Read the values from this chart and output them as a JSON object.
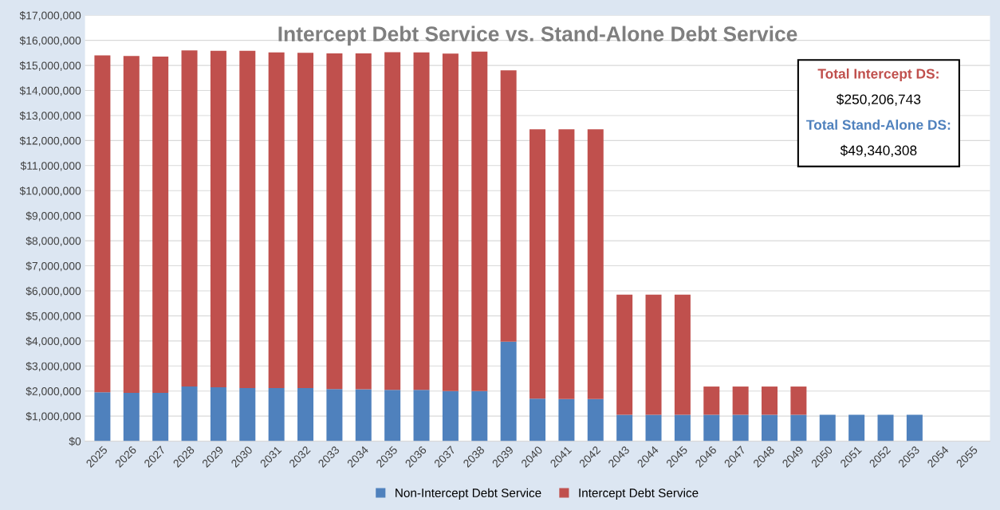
{
  "chart_data": {
    "type": "bar",
    "stacked": true,
    "title": "Intercept Debt Service vs. Stand-Alone Debt Service",
    "categories": [
      "2025",
      "2026",
      "2027",
      "2028",
      "2029",
      "2030",
      "2031",
      "2032",
      "2033",
      "2034",
      "2035",
      "2036",
      "2037",
      "2038",
      "2039",
      "2040",
      "2041",
      "2042",
      "2043",
      "2044",
      "2045",
      "2046",
      "2047",
      "2048",
      "2049",
      "2050",
      "2051",
      "2052",
      "2053",
      "2054",
      "2055"
    ],
    "series": [
      {
        "name": "Non-Intercept Debt Service",
        "color": "#4f81bd",
        "values": [
          1950000,
          1930000,
          1930000,
          2180000,
          2150000,
          2120000,
          2120000,
          2120000,
          2080000,
          2070000,
          2050000,
          2050000,
          2000000,
          2000000,
          3970000,
          1700000,
          1680000,
          1680000,
          1050000,
          1050000,
          1050000,
          1050000,
          1050000,
          1050000,
          1050000,
          1050000,
          1050000,
          1050000,
          1050000,
          0,
          0
        ]
      },
      {
        "name": "Intercept Debt Service",
        "color": "#c0504d",
        "values": [
          13450000,
          13450000,
          13420000,
          13420000,
          13430000,
          13460000,
          13400000,
          13380000,
          13400000,
          13410000,
          13480000,
          13470000,
          13470000,
          13550000,
          10830000,
          10750000,
          10770000,
          10770000,
          4800000,
          4800000,
          4800000,
          1130000,
          1130000,
          1130000,
          1130000,
          0,
          0,
          0,
          0,
          0,
          0
        ]
      }
    ],
    "ylim": [
      0,
      17000000
    ],
    "yticks": [
      {
        "value": 0,
        "label": "$0"
      },
      {
        "value": 1000000,
        "label": "$1,000,000"
      },
      {
        "value": 2000000,
        "label": "$2,000,000"
      },
      {
        "value": 3000000,
        "label": "$3,000,000"
      },
      {
        "value": 4000000,
        "label": "$4,000,000"
      },
      {
        "value": 5000000,
        "label": "$5,000,000"
      },
      {
        "value": 6000000,
        "label": "$6,000,000"
      },
      {
        "value": 7000000,
        "label": "$7,000,000"
      },
      {
        "value": 8000000,
        "label": "$8,000,000"
      },
      {
        "value": 9000000,
        "label": "$9,000,000"
      },
      {
        "value": 10000000,
        "label": "$10,000,000"
      },
      {
        "value": 11000000,
        "label": "$11,000,000"
      },
      {
        "value": 12000000,
        "label": "$12,000,000"
      },
      {
        "value": 13000000,
        "label": "$13,000,000"
      },
      {
        "value": 14000000,
        "label": "$14,000,000"
      },
      {
        "value": 15000000,
        "label": "$15,000,000"
      },
      {
        "value": 16000000,
        "label": "$16,000,000"
      },
      {
        "value": 17000000,
        "label": "$17,000,000"
      }
    ],
    "grid": "y",
    "legend": "bottom",
    "annotations": [
      "Total Intercept DS:",
      "$250,206,743",
      "Total Stand-Alone DS:",
      "$49,340,308"
    ]
  }
}
